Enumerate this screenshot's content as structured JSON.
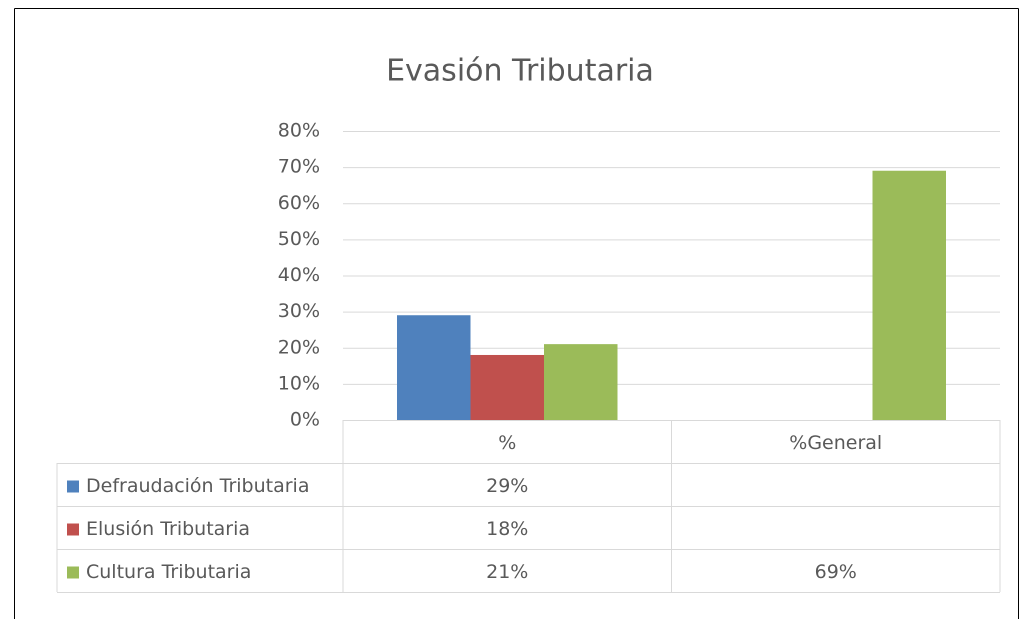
{
  "chart_data": {
    "type": "bar",
    "title": "Evasión Tributaria",
    "categories": [
      "%",
      "%General"
    ],
    "series": [
      {
        "name": "Defraudación Tributaria",
        "color": "#4f81bd",
        "values": [
          29,
          null
        ],
        "value_labels": [
          "29%",
          null
        ]
      },
      {
        "name": "Elusión Tributaria",
        "color": "#c0504d",
        "values": [
          18,
          null
        ],
        "value_labels": [
          "18%",
          null
        ]
      },
      {
        "name": "Cultura Tributaria",
        "color": "#9bbb59",
        "values": [
          21,
          69
        ],
        "value_labels": [
          "21%",
          "69%"
        ]
      }
    ],
    "ylim": [
      0,
      80
    ],
    "yticks": [
      {
        "value": 0,
        "label": "0%"
      },
      {
        "value": 10,
        "label": "10%"
      },
      {
        "value": 20,
        "label": "20%"
      },
      {
        "value": 30,
        "label": "30%"
      },
      {
        "value": 40,
        "label": "40%"
      },
      {
        "value": 50,
        "label": "50%"
      },
      {
        "value": 60,
        "label": "60%"
      },
      {
        "value": 70,
        "label": "70%"
      },
      {
        "value": 80,
        "label": "80%"
      }
    ],
    "grid": true
  }
}
